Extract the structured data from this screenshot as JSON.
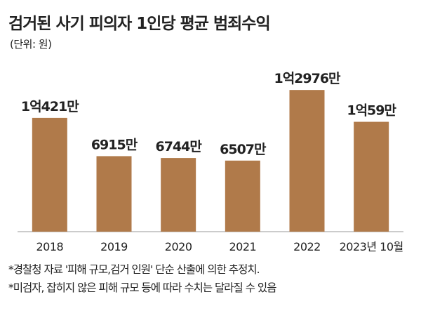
{
  "chart_data": {
    "type": "bar",
    "title": "검거된 사기 피의자 1인당 평균 범죄수익",
    "subtitle": "(단위: 원)",
    "categories": [
      "2018",
      "2019",
      "2020",
      "2021",
      "2022",
      "2023년 10월"
    ],
    "values": [
      10421,
      6915,
      6744,
      6507,
      12976,
      10059
    ],
    "value_unit": "만원",
    "data_labels": [
      "1억421만",
      "6915만",
      "6744만",
      "6507만",
      "1억2976만",
      "1억59만"
    ],
    "xlabel": "",
    "ylabel": "",
    "ylim": [
      0,
      13500
    ],
    "grid": false,
    "bar_color": "#b07a4a",
    "notes": [
      "*경찰청 자료 '피해 규모,검거 인원' 단순 산출에 의한 추정치.",
      "*미검자, 잡히지 않은 피해 규모 등에 따라 수치는 달라질 수 있음"
    ]
  }
}
